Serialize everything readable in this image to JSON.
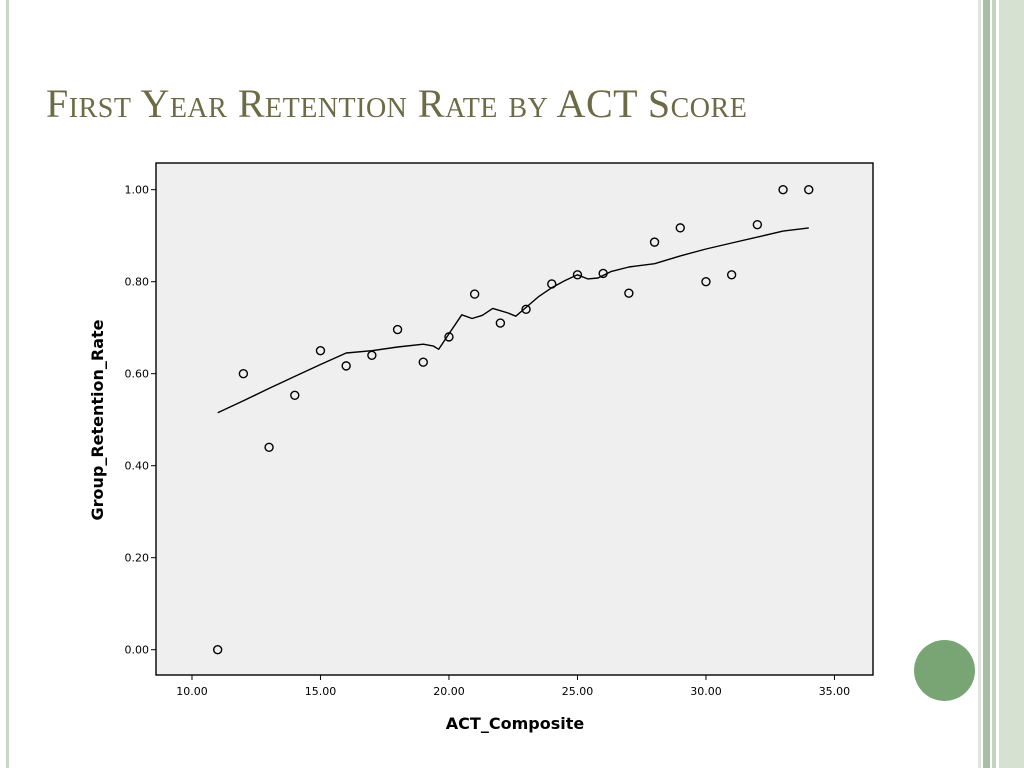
{
  "slide": {
    "title": "First Year Retention Rate by ACT Score"
  },
  "colors": {
    "title": "#6b6b45",
    "plot_background": "#efefef",
    "accent_circle": "#79a574",
    "frame_light": "#c9d8c5",
    "frame_dark": "#9fb59a"
  },
  "chart_data": {
    "type": "scatter",
    "title": "",
    "xlabel": "ACT_Composite",
    "ylabel": "Group_Retention_Rate",
    "xlim": [
      8.6,
      36.5
    ],
    "ylim": [
      -0.055,
      1.058
    ],
    "x_ticks": [
      10,
      15,
      20,
      25,
      30,
      35
    ],
    "x_tick_labels": [
      "10.00",
      "15.00",
      "20.00",
      "25.00",
      "30.00",
      "35.00"
    ],
    "y_ticks": [
      0,
      0.2,
      0.4,
      0.6,
      0.8,
      1.0
    ],
    "y_tick_labels": [
      "0.00",
      "0.20",
      "0.40",
      "0.60",
      "0.80",
      "1.00"
    ],
    "grid": false,
    "series": [
      {
        "kind": "points",
        "x": [
          11,
          12,
          13,
          14,
          15,
          16,
          17,
          18,
          19,
          20,
          21,
          22,
          23,
          24,
          25,
          26,
          27,
          28,
          29,
          30,
          31,
          32,
          33,
          34
        ],
        "y": [
          0.0,
          0.6,
          0.44,
          0.553,
          0.65,
          0.617,
          0.64,
          0.696,
          0.625,
          0.68,
          0.773,
          0.71,
          0.74,
          0.795,
          0.815,
          0.818,
          0.775,
          0.886,
          0.917,
          0.8,
          0.815,
          0.924,
          1.0,
          1.0
        ]
      },
      {
        "kind": "fit-line",
        "x": [
          11,
          12,
          13,
          14,
          15,
          16,
          17,
          18,
          19,
          19.4,
          19.6,
          20,
          20.5,
          20.9,
          21.3,
          21.7,
          22,
          22.3,
          22.6,
          23,
          23.5,
          24,
          24.5,
          25,
          25.4,
          25.8,
          26.3,
          27,
          28,
          29,
          30,
          31,
          32,
          33,
          34
        ],
        "y": [
          0.515,
          0.541,
          0.568,
          0.594,
          0.62,
          0.645,
          0.65,
          0.658,
          0.664,
          0.66,
          0.653,
          0.687,
          0.728,
          0.72,
          0.727,
          0.742,
          0.737,
          0.732,
          0.725,
          0.744,
          0.768,
          0.787,
          0.802,
          0.815,
          0.806,
          0.808,
          0.822,
          0.832,
          0.839,
          0.856,
          0.871,
          0.884,
          0.897,
          0.91,
          0.917
        ]
      }
    ]
  }
}
